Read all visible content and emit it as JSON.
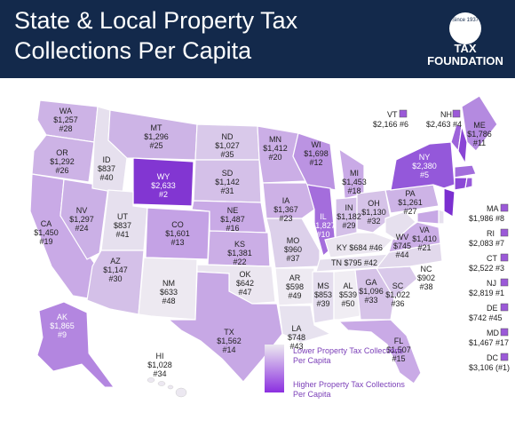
{
  "header": {
    "title_line1": "State & Local Property Tax",
    "title_line2": "Collections Per Capita",
    "logo_text": "TAX FOUNDATION",
    "logo_seal_text": "Since 1937"
  },
  "colors": {
    "header_bg": "#13294b",
    "scale_low": "#e7e2ef",
    "scale_mid": "#c7a6e6",
    "scale_high": "#7b2fd0",
    "highlight": "#9b59d8"
  },
  "states": {
    "WA": {
      "name": "WA",
      "value": "$1,257",
      "rank": "#28"
    },
    "OR": {
      "name": "OR",
      "value": "$1,292",
      "rank": "#26"
    },
    "CA": {
      "name": "CA",
      "value": "$1,450",
      "rank": "#19"
    },
    "NV": {
      "name": "NV",
      "value": "$1,297",
      "rank": "#24"
    },
    "ID": {
      "name": "ID",
      "value": "$837",
      "rank": "#40"
    },
    "MT": {
      "name": "MT",
      "value": "$1,296",
      "rank": "#25"
    },
    "WY": {
      "name": "WY",
      "value": "$2,633",
      "rank": "#2"
    },
    "UT": {
      "name": "UT",
      "value": "$837",
      "rank": "#41"
    },
    "AZ": {
      "name": "AZ",
      "value": "$1,147",
      "rank": "#30"
    },
    "CO": {
      "name": "CO",
      "value": "$1,601",
      "rank": "#13"
    },
    "NM": {
      "name": "NM",
      "value": "$633",
      "rank": "#48"
    },
    "ND": {
      "name": "ND",
      "value": "$1,027",
      "rank": "#35"
    },
    "SD": {
      "name": "SD",
      "value": "$1,142",
      "rank": "#31"
    },
    "NE": {
      "name": "NE",
      "value": "$1,487",
      "rank": "#16"
    },
    "KS": {
      "name": "KS",
      "value": "$1,381",
      "rank": "#22"
    },
    "OK": {
      "name": "OK",
      "value": "$642",
      "rank": "#47"
    },
    "TX": {
      "name": "TX",
      "value": "$1,562",
      "rank": "#14"
    },
    "MN": {
      "name": "MN",
      "value": "$1,412",
      "rank": "#20"
    },
    "IA": {
      "name": "IA",
      "value": "$1,367",
      "rank": "#23"
    },
    "MO": {
      "name": "MO",
      "value": "$960",
      "rank": "#37"
    },
    "AR": {
      "name": "AR",
      "value": "$598",
      "rank": "#49"
    },
    "LA": {
      "name": "LA",
      "value": "$748",
      "rank": "#43"
    },
    "WI": {
      "name": "WI",
      "value": "$1,698",
      "rank": "#12"
    },
    "IL": {
      "name": "IL",
      "value": "$1,827",
      "rank": "#10"
    },
    "MI": {
      "name": "MI",
      "value": "$1,453",
      "rank": "#18"
    },
    "IN": {
      "name": "IN",
      "value": "$1,182",
      "rank": "#29"
    },
    "OH": {
      "name": "OH",
      "value": "$1,130",
      "rank": "#32"
    },
    "KY": {
      "name": "KY",
      "value": "$684",
      "rank": "#46"
    },
    "TN": {
      "name": "TN",
      "value": "$795",
      "rank": "#42"
    },
    "MS": {
      "name": "MS",
      "value": "$853",
      "rank": "#39"
    },
    "AL": {
      "name": "AL",
      "value": "$539",
      "rank": "#50"
    },
    "GA": {
      "name": "GA",
      "value": "$1,096",
      "rank": "#33"
    },
    "FL": {
      "name": "FL",
      "value": "$1,507",
      "rank": "#15"
    },
    "SC": {
      "name": "SC",
      "value": "$1,022",
      "rank": "#36"
    },
    "NC": {
      "name": "NC",
      "value": "$902",
      "rank": "#38"
    },
    "VA": {
      "name": "VA",
      "value": "$1,410",
      "rank": "#21"
    },
    "WV": {
      "name": "WV",
      "value": "$745",
      "rank": "#44"
    },
    "PA": {
      "name": "PA",
      "value": "$1,261",
      "rank": "#27"
    },
    "NY": {
      "name": "NY",
      "value": "$2,380",
      "rank": "#5"
    },
    "ME": {
      "name": "ME",
      "value": "$1,786",
      "rank": "#11"
    },
    "AK": {
      "name": "AK",
      "value": "$1,865",
      "rank": "#9"
    },
    "HI": {
      "name": "HI",
      "value": "$1,028",
      "rank": "#34"
    }
  },
  "small_states": {
    "VT": {
      "name": "VT",
      "value_rank": "$2,166 #6"
    },
    "NH": {
      "name": "NH",
      "value_rank": "$2,463 #4"
    },
    "MA": {
      "name": "MA",
      "value_rank": "$1,986 #8"
    },
    "RI": {
      "name": "RI",
      "value_rank": "$2,083 #7"
    },
    "CT": {
      "name": "CT",
      "value_rank": "$2,522 #3"
    },
    "NJ": {
      "name": "NJ",
      "value_rank": "$2,819 #1"
    },
    "DE": {
      "name": "DE",
      "value_rank": "$742 #45"
    },
    "MD": {
      "name": "MD",
      "value_rank": "$1,467 #17"
    },
    "DC": {
      "name": "DC",
      "value_rank": "$3,106 (#1)"
    }
  },
  "legend": {
    "low_line1": "Lower Property Tax Collections",
    "low_line2": "Per Capita",
    "high_line1": "Higher Property Tax Collections",
    "high_line2": "Per Capita"
  }
}
